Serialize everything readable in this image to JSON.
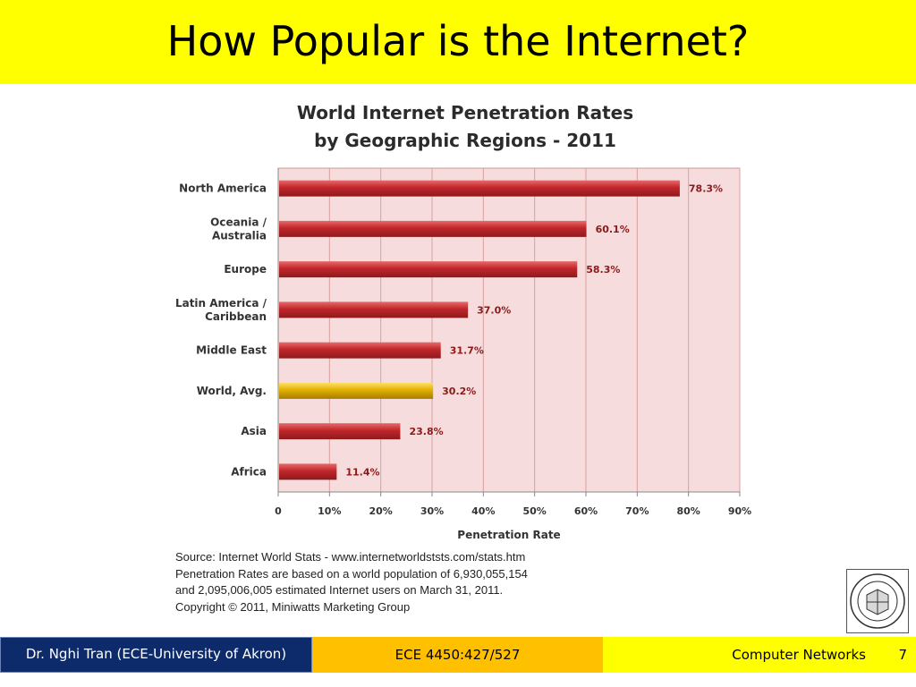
{
  "slide": {
    "title": "How Popular is the Internet?"
  },
  "chart_data": {
    "type": "bar",
    "orientation": "horizontal",
    "title": "World Internet Penetration Rates",
    "subtitle": "by Geographic Regions - 2011",
    "xlabel": "Penetration Rate",
    "ylabel": "",
    "xlim": [
      0,
      90
    ],
    "x_ticks": [
      "0",
      "10%",
      "20%",
      "30%",
      "40%",
      "50%",
      "60%",
      "70%",
      "80%",
      "90%"
    ],
    "categories": [
      [
        "North America"
      ],
      [
        "Oceania  /",
        "Australia"
      ],
      [
        "Europe"
      ],
      [
        "Latin America /",
        "Caribbean"
      ],
      [
        "Middle East"
      ],
      [
        "World, Avg."
      ],
      [
        "Asia"
      ],
      [
        "Africa"
      ]
    ],
    "values": [
      78.3,
      60.1,
      58.3,
      37.0,
      31.7,
      30.2,
      23.8,
      11.4
    ],
    "data_labels": [
      "78.3%",
      "60.1%",
      "58.3%",
      "37.0%",
      "31.7%",
      "30.2%",
      "23.8%",
      "11.4%"
    ],
    "highlight_index": 5,
    "grid": true,
    "colors": {
      "bar": "#c0262a",
      "bar_highlight": "#e0b000",
      "plot_bg": "#f6dcdc",
      "grid": "#d9a0a0",
      "label": "#8b1a1a"
    }
  },
  "source": {
    "lines": [
      "Source: Internet World Stats - www.internetworldststs.com/stats.htm",
      "Penetration Rates are based on a world population of 6,930,055,154",
      "and 2,095,006,005 estimated Internet users on March 31, 2011.",
      "Copyright © 2011, Miniwatts Marketing Group"
    ]
  },
  "footer": {
    "author": "Dr. Nghi Tran (ECE-University of Akron)",
    "course_code": "ECE 4450:427/527",
    "course_name": "Computer Networks",
    "page": "7"
  }
}
